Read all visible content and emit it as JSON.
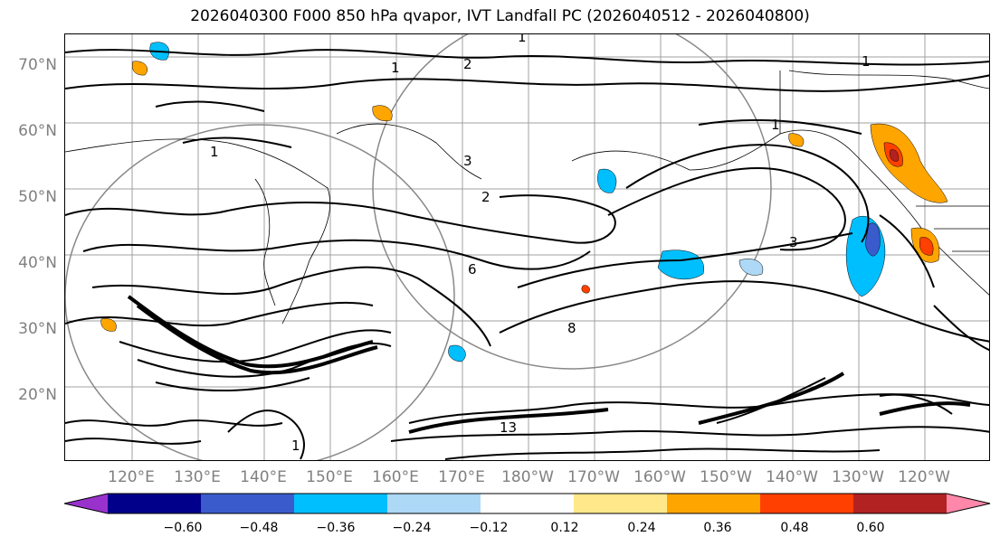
{
  "title": "2026040300 F000 850 hPa qvapor, IVT Landfall PC (2026040512 - 2026040800)",
  "lat_labels": [
    "70°N",
    "60°N",
    "50°N",
    "40°N",
    "30°N",
    "20°N"
  ],
  "lon_labels": [
    "120°E",
    "130°E",
    "140°E",
    "150°E",
    "160°E",
    "170°E",
    "180°W",
    "170°W",
    "160°W",
    "150°W",
    "140°W",
    "130°W",
    "120°W"
  ],
  "colorbar": {
    "colors": [
      "#9932cc",
      "#00008b",
      "#3a5bcc",
      "#00bfff",
      "#add8f6",
      "#ffffff",
      "#ffe88a",
      "#ffa500",
      "#ff4000",
      "#b22222",
      "#ff88aa"
    ],
    "tick_labels": [
      "−0.60",
      "−0.48",
      "−0.36",
      "−0.24",
      "−0.12",
      "0.12",
      "0.24",
      "0.36",
      "0.48",
      "0.60"
    ]
  },
  "contour_labels": [
    "1",
    "1",
    "1",
    "1",
    "2",
    "3",
    "1",
    "2",
    "6",
    "8",
    "3",
    "13",
    "1"
  ]
}
